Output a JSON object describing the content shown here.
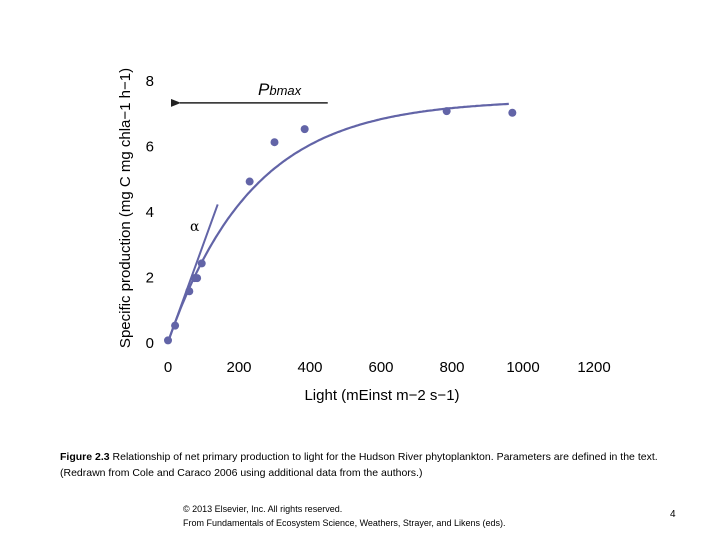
{
  "chart_data": {
    "type": "scatter",
    "xlabel": "Light (mEinst m−2 s−1)",
    "ylabel": "Specific production (mg C mg chla−1 h−1)",
    "xlim": [
      0,
      1200
    ],
    "ylim": [
      0,
      8
    ],
    "x_ticks": [
      0,
      200,
      400,
      600,
      800,
      1000,
      1200
    ],
    "y_ticks": [
      0,
      2,
      4,
      6,
      8
    ],
    "grid": false,
    "color": "#6264a7",
    "points": [
      {
        "x": 0,
        "y": 0.05
      },
      {
        "x": 20,
        "y": 0.5
      },
      {
        "x": 60,
        "y": 1.55
      },
      {
        "x": 75,
        "y": 1.95
      },
      {
        "x": 82,
        "y": 1.95
      },
      {
        "x": 95,
        "y": 2.4
      },
      {
        "x": 230,
        "y": 4.9
      },
      {
        "x": 300,
        "y": 6.1
      },
      {
        "x": 385,
        "y": 6.5
      },
      {
        "x": 785,
        "y": 7.05
      },
      {
        "x": 970,
        "y": 7.0
      }
    ],
    "fit_curve": {
      "pmax": 7.4,
      "k": 0.0042,
      "x_range": [
        0,
        960
      ]
    },
    "alpha_line": [
      [
        0,
        0
      ],
      [
        140,
        4.2
      ]
    ],
    "annotations": {
      "pbmax_label": "Pbmax",
      "alpha_label": "α",
      "pbmax_arrow": {
        "from_x": 450,
        "to_x": 0,
        "y": 7.3
      }
    }
  },
  "caption": {
    "figure_label": "Figure 2.3",
    "text": " Relationship of net primary production to light for the Hudson River phytoplankton. Parameters are defined in the text. (Redrawn from Cole and Caraco 2006 using additional data from the authors.)"
  },
  "copyright": {
    "line1": "© 2013 Elsevier, Inc. All rights reserved.",
    "line2": "From Fundamentals of Ecosystem Science, Weathers, Strayer, and Likens (eds)."
  },
  "page_number": "4"
}
